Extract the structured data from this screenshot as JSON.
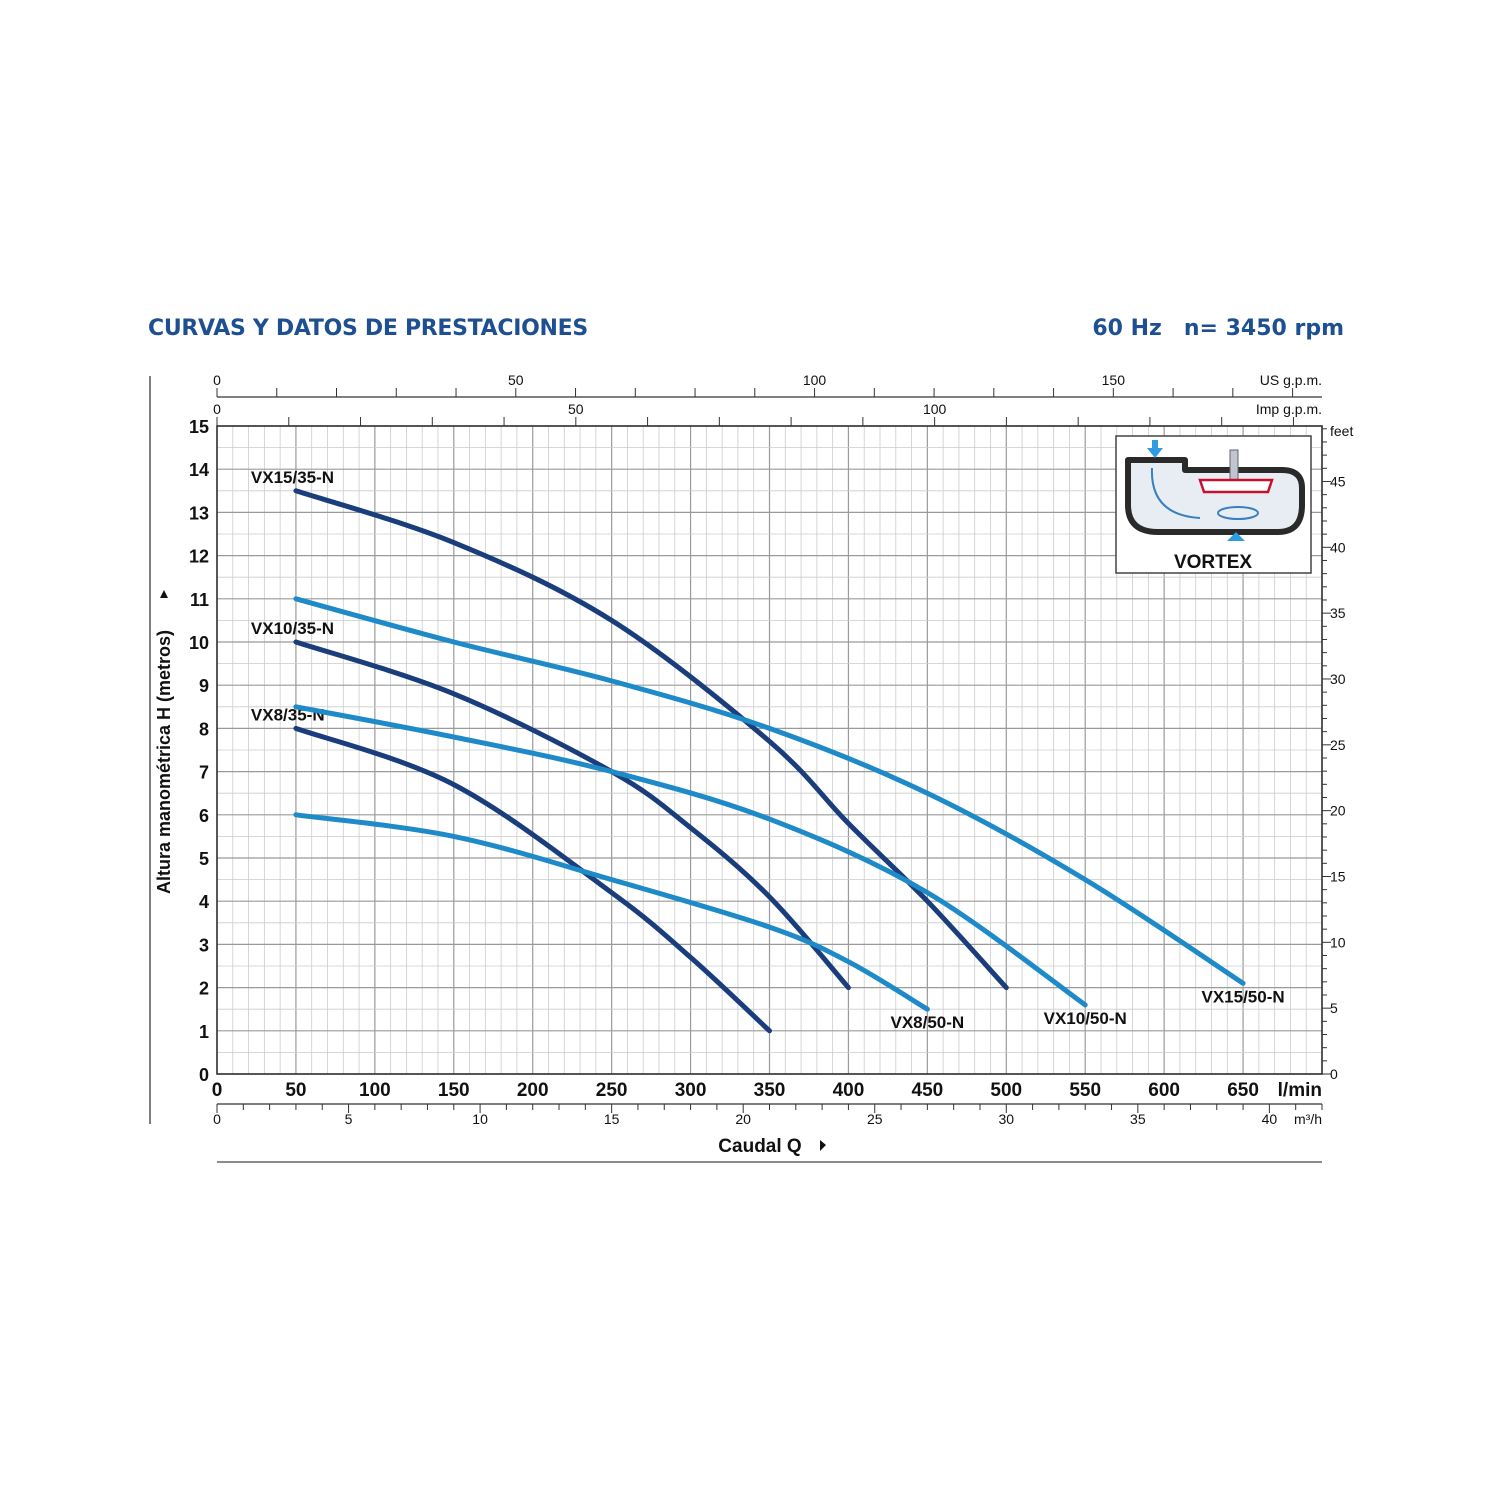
{
  "header": {
    "title": "CURVAS Y DATOS DE PRESTACIONES",
    "frequency": "60 Hz",
    "speed": "n= 3450 rpm"
  },
  "colors": {
    "header": "#1d4f91",
    "series_35N": "#1a3d7c",
    "series_50N": "#1f8ac8",
    "grid": "#b5b5b5"
  },
  "inset": {
    "label": "VORTEX",
    "icon": "vortex-impeller-icon"
  },
  "chart_data": {
    "type": "line",
    "xlabel": "Caudal Q",
    "ylabel": "Altura manométrica H (metros)",
    "x_unit": "l/min",
    "xlim": [
      0,
      700
    ],
    "ylim": [
      0,
      15
    ],
    "x_ticks": [
      0,
      50,
      100,
      150,
      200,
      250,
      300,
      350,
      400,
      450,
      500,
      550,
      600,
      650
    ],
    "y_ticks": [
      0,
      1,
      2,
      3,
      4,
      5,
      6,
      7,
      8,
      9,
      10,
      11,
      12,
      13,
      14,
      15
    ],
    "grid": true,
    "secondary_axes": {
      "us_gpm": {
        "unit": "US g.p.m.",
        "ticks": [
          0,
          50,
          100,
          150
        ]
      },
      "imp_gpm": {
        "unit": "Imp g.p.m.",
        "ticks": [
          0,
          50,
          100
        ]
      },
      "m3h": {
        "unit": "m³/h",
        "ticks": [
          0,
          5,
          10,
          15,
          20,
          25,
          30,
          35,
          40
        ]
      },
      "feet": {
        "unit": "feet",
        "ticks": [
          0,
          5,
          10,
          15,
          20,
          25,
          30,
          35,
          40,
          45
        ]
      }
    },
    "series": [
      {
        "name": "VX15/35-N",
        "group": "35-N",
        "x": [
          50,
          150,
          250,
          350,
          400,
          450,
          500
        ],
        "y": [
          13.5,
          12.3,
          10.5,
          7.7,
          5.8,
          4.0,
          2.0
        ]
      },
      {
        "name": "VX10/35-N",
        "group": "35-N",
        "x": [
          50,
          150,
          250,
          300,
          350,
          400
        ],
        "y": [
          10.0,
          8.8,
          7.0,
          5.7,
          4.1,
          2.0
        ]
      },
      {
        "name": "VX8/35-N",
        "group": "35-N",
        "x": [
          50,
          150,
          250,
          300,
          350
        ],
        "y": [
          8.0,
          6.7,
          4.2,
          2.7,
          1.0
        ]
      },
      {
        "name": "VX15/50-N",
        "group": "50-N",
        "x": [
          50,
          150,
          250,
          350,
          450,
          550,
          650
        ],
        "y": [
          11.0,
          10.0,
          9.1,
          8.0,
          6.5,
          4.5,
          2.1
        ]
      },
      {
        "name": "VX10/50-N",
        "group": "50-N",
        "x": [
          50,
          150,
          250,
          350,
          450,
          550
        ],
        "y": [
          8.5,
          7.8,
          7.0,
          5.9,
          4.2,
          1.6
        ]
      },
      {
        "name": "VX8/50-N",
        "group": "50-N",
        "x": [
          50,
          150,
          250,
          350,
          400,
          450
        ],
        "y": [
          6.0,
          5.5,
          4.5,
          3.4,
          2.6,
          1.5
        ]
      }
    ]
  }
}
